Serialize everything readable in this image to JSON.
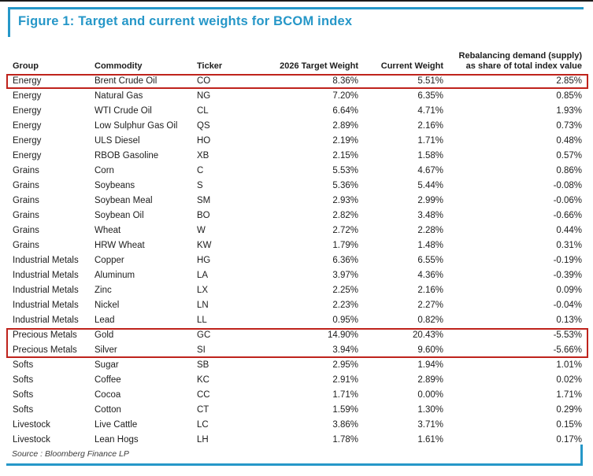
{
  "figure": {
    "title": "Figure 1: Target and current weights for BCOM index",
    "source": "Source : Bloomberg Finance LP",
    "accent_color": "#2697c8",
    "highlight_color": "#bf231c"
  },
  "table": {
    "header": {
      "group": "Group",
      "commodity": "Commodity",
      "ticker": "Ticker",
      "target": "2026 Target Weight",
      "current": "Current Weight",
      "rebalancing_line1": "Rebalancing demand (supply)",
      "rebalancing_line2": "as share of total index value"
    },
    "rows": [
      {
        "group": "Energy",
        "commodity": "Brent Crude Oil",
        "ticker": "CO",
        "target": "8.36%",
        "current": "5.51%",
        "rebalancing": "2.85%",
        "highlight": "single"
      },
      {
        "group": "Energy",
        "commodity": "Natural Gas",
        "ticker": "NG",
        "target": "7.20%",
        "current": "6.35%",
        "rebalancing": "0.85%"
      },
      {
        "group": "Energy",
        "commodity": "WTI Crude Oil",
        "ticker": "CL",
        "target": "6.64%",
        "current": "4.71%",
        "rebalancing": "1.93%"
      },
      {
        "group": "Energy",
        "commodity": "Low Sulphur Gas Oil",
        "ticker": "QS",
        "target": "2.89%",
        "current": "2.16%",
        "rebalancing": "0.73%"
      },
      {
        "group": "Energy",
        "commodity": "ULS Diesel",
        "ticker": "HO",
        "target": "2.19%",
        "current": "1.71%",
        "rebalancing": "0.48%"
      },
      {
        "group": "Energy",
        "commodity": "RBOB Gasoline",
        "ticker": "XB",
        "target": "2.15%",
        "current": "1.58%",
        "rebalancing": "0.57%"
      },
      {
        "group": "Grains",
        "commodity": "Corn",
        "ticker": "C",
        "target": "5.53%",
        "current": "4.67%",
        "rebalancing": "0.86%"
      },
      {
        "group": "Grains",
        "commodity": "Soybeans",
        "ticker": "S",
        "target": "5.36%",
        "current": "5.44%",
        "rebalancing": "-0.08%"
      },
      {
        "group": "Grains",
        "commodity": "Soybean Meal",
        "ticker": "SM",
        "target": "2.93%",
        "current": "2.99%",
        "rebalancing": "-0.06%"
      },
      {
        "group": "Grains",
        "commodity": "Soybean Oil",
        "ticker": "BO",
        "target": "2.82%",
        "current": "3.48%",
        "rebalancing": "-0.66%"
      },
      {
        "group": "Grains",
        "commodity": "Wheat",
        "ticker": "W",
        "target": "2.72%",
        "current": "2.28%",
        "rebalancing": "0.44%"
      },
      {
        "group": "Grains",
        "commodity": "HRW Wheat",
        "ticker": "KW",
        "target": "1.79%",
        "current": "1.48%",
        "rebalancing": "0.31%"
      },
      {
        "group": "Industrial Metals",
        "commodity": "Copper",
        "ticker": "HG",
        "target": "6.36%",
        "current": "6.55%",
        "rebalancing": "-0.19%"
      },
      {
        "group": "Industrial Metals",
        "commodity": "Aluminum",
        "ticker": "LA",
        "target": "3.97%",
        "current": "4.36%",
        "rebalancing": "-0.39%"
      },
      {
        "group": "Industrial Metals",
        "commodity": "Zinc",
        "ticker": "LX",
        "target": "2.25%",
        "current": "2.16%",
        "rebalancing": "0.09%"
      },
      {
        "group": "Industrial Metals",
        "commodity": "Nickel",
        "ticker": "LN",
        "target": "2.23%",
        "current": "2.27%",
        "rebalancing": "-0.04%"
      },
      {
        "group": "Industrial Metals",
        "commodity": "Lead",
        "ticker": "LL",
        "target": "0.95%",
        "current": "0.82%",
        "rebalancing": "0.13%"
      },
      {
        "group": "Precious Metals",
        "commodity": "Gold",
        "ticker": "GC",
        "target": "14.90%",
        "current": "20.43%",
        "rebalancing": "-5.53%",
        "highlight": "top"
      },
      {
        "group": "Precious Metals",
        "commodity": "Silver",
        "ticker": "SI",
        "target": "3.94%",
        "current": "9.60%",
        "rebalancing": "-5.66%",
        "highlight": "bottom"
      },
      {
        "group": "Softs",
        "commodity": "Sugar",
        "ticker": "SB",
        "target": "2.95%",
        "current": "1.94%",
        "rebalancing": "1.01%"
      },
      {
        "group": "Softs",
        "commodity": "Coffee",
        "ticker": "KC",
        "target": "2.91%",
        "current": "2.89%",
        "rebalancing": "0.02%"
      },
      {
        "group": "Softs",
        "commodity": "Cocoa",
        "ticker": "CC",
        "target": "1.71%",
        "current": "0.00%",
        "rebalancing": "1.71%"
      },
      {
        "group": "Softs",
        "commodity": "Cotton",
        "ticker": "CT",
        "target": "1.59%",
        "current": "1.30%",
        "rebalancing": "0.29%"
      },
      {
        "group": "Livestock",
        "commodity": "Live Cattle",
        "ticker": "LC",
        "target": "3.86%",
        "current": "3.71%",
        "rebalancing": "0.15%"
      },
      {
        "group": "Livestock",
        "commodity": "Lean Hogs",
        "ticker": "LH",
        "target": "1.78%",
        "current": "1.61%",
        "rebalancing": "0.17%"
      }
    ]
  },
  "chart_data": {
    "type": "table",
    "title": "Figure 1: Target and current weights for BCOM index",
    "columns": [
      "Group",
      "Commodity",
      "Ticker",
      "2026 Target Weight",
      "Current Weight",
      "Rebalancing demand (supply) as share of total index value"
    ],
    "highlighted_rows": [
      "Brent Crude Oil",
      "Gold",
      "Silver"
    ]
  }
}
